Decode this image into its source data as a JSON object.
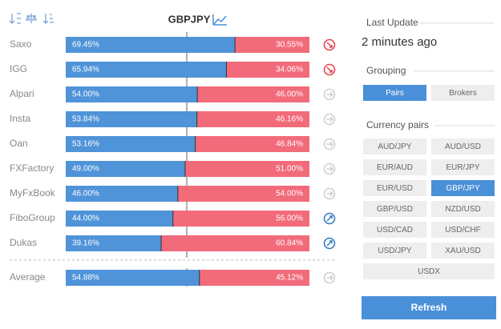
{
  "header": {
    "title": "GBPJPY"
  },
  "rows": [
    {
      "name": "Saxo",
      "long": 69.45,
      "short": 30.55,
      "long_label": "69.45%",
      "short_label": "30.55%",
      "arrow": "down"
    },
    {
      "name": "IGG",
      "long": 65.94,
      "short": 34.06,
      "long_label": "65.94%",
      "short_label": "34.06%",
      "arrow": "down"
    },
    {
      "name": "Alpari",
      "long": 54.0,
      "short": 46.0,
      "long_label": "54.00%",
      "short_label": "46.00%",
      "arrow": "right"
    },
    {
      "name": "Insta",
      "long": 53.84,
      "short": 46.16,
      "long_label": "53.84%",
      "short_label": "46.16%",
      "arrow": "right"
    },
    {
      "name": "Oan",
      "long": 53.16,
      "short": 46.84,
      "long_label": "53.16%",
      "short_label": "46.84%",
      "arrow": "right"
    },
    {
      "name": "FXFactory",
      "long": 49.0,
      "short": 51.0,
      "long_label": "49.00%",
      "short_label": "51.00%",
      "arrow": "right"
    },
    {
      "name": "MyFxBook",
      "long": 46.0,
      "short": 54.0,
      "long_label": "46.00%",
      "short_label": "54.00%",
      "arrow": "right"
    },
    {
      "name": "FiboGroup",
      "long": 44.0,
      "short": 56.0,
      "long_label": "44.00%",
      "short_label": "56.00%",
      "arrow": "up"
    },
    {
      "name": "Dukas",
      "long": 39.16,
      "short": 60.84,
      "long_label": "39.16%",
      "short_label": "60.84%",
      "arrow": "up"
    }
  ],
  "average": {
    "name": "Average",
    "long": 54.88,
    "short": 45.12,
    "long_label": "54.88%",
    "short_label": "45.12%",
    "arrow": "right"
  },
  "sidebar": {
    "last_update_title": "Last Update",
    "last_update": "2 minutes ago",
    "grouping_title": "Grouping",
    "grouping": [
      {
        "label": "Pairs",
        "active": true
      },
      {
        "label": "Brokers",
        "active": false
      }
    ],
    "pairs_title": "Currency pairs",
    "pairs": [
      {
        "label": "AUD/JPY",
        "active": false
      },
      {
        "label": "AUD/USD",
        "active": false
      },
      {
        "label": "EUR/AUD",
        "active": false
      },
      {
        "label": "EUR/JPY",
        "active": false
      },
      {
        "label": "EUR/USD",
        "active": false
      },
      {
        "label": "GBP/JPY",
        "active": true
      },
      {
        "label": "GBP/USD",
        "active": false
      },
      {
        "label": "NZD/USD",
        "active": false
      },
      {
        "label": "USD/CAD",
        "active": false
      },
      {
        "label": "USD/CHF",
        "active": false
      },
      {
        "label": "USD/JPY",
        "active": false
      },
      {
        "label": "XAU/USD",
        "active": false
      },
      {
        "label": "USDX",
        "active": false
      }
    ],
    "refresh": "Refresh"
  }
}
